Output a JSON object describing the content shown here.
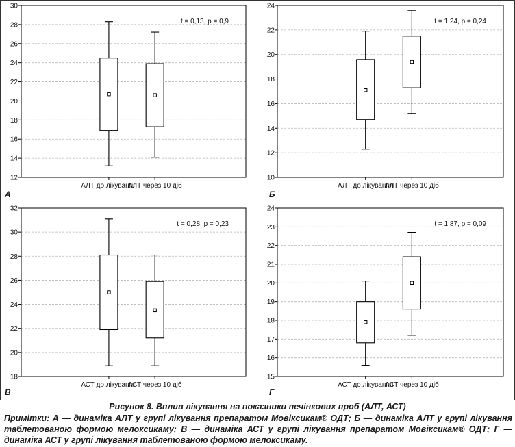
{
  "figure": {
    "caption": "Рисунок 8. Вплив лікування на показники печінкових проб (АЛТ, АСТ)",
    "note": "Примітки: А — динаміка АЛТ у групі лікування препаратом Мовіксикам® ОДТ; Б — динаміка АЛТ у групі лікування таблетованою формою мелоксикаму; В — динаміка АСТ у групі лікування препаратом Мовіксикам® ОДТ; Г — динаміка АСТ у групі лікування таблетованою формою мелоксикаму."
  },
  "chart_data": [
    {
      "type": "box",
      "panel_label": "А",
      "annotation": "t = 0,13,  p = 0,9",
      "categories": [
        "АЛТ до лікування",
        "АЛТ через 10 діб"
      ],
      "ylim": [
        12,
        30
      ],
      "yticks": [
        12,
        14,
        16,
        18,
        20,
        22,
        24,
        26,
        28,
        30
      ],
      "grid": true,
      "boxes": [
        {
          "min": 13.2,
          "q1": 16.9,
          "median": 20.7,
          "q3": 24.5,
          "max": 28.3
        },
        {
          "min": 14.1,
          "q1": 17.3,
          "median": 20.6,
          "q3": 23.9,
          "max": 27.2
        }
      ]
    },
    {
      "type": "box",
      "panel_label": "Б",
      "annotation": "t = 1,24,  p = 0,24",
      "categories": [
        "АЛТ до лікування",
        "АЛТ через 10 діб"
      ],
      "ylim": [
        10,
        24
      ],
      "yticks": [
        10,
        12,
        14,
        16,
        18,
        20,
        22,
        24
      ],
      "grid": true,
      "boxes": [
        {
          "min": 12.3,
          "q1": 14.7,
          "median": 17.1,
          "q3": 19.6,
          "max": 21.9
        },
        {
          "min": 15.2,
          "q1": 17.3,
          "median": 19.4,
          "q3": 21.5,
          "max": 23.6
        }
      ]
    },
    {
      "type": "box",
      "panel_label": "В",
      "annotation": "t = 0,28,  p = 0,23",
      "categories": [
        "АСТ до лікування",
        "АСТ через 10 діб"
      ],
      "ylim": [
        18,
        32
      ],
      "yticks": [
        18,
        20,
        22,
        24,
        26,
        28,
        30,
        32
      ],
      "grid": true,
      "boxes": [
        {
          "min": 18.9,
          "q1": 21.9,
          "median": 25.0,
          "q3": 28.1,
          "max": 31.1
        },
        {
          "min": 18.9,
          "q1": 21.2,
          "median": 23.5,
          "q3": 25.9,
          "max": 28.1
        }
      ]
    },
    {
      "type": "box",
      "panel_label": "Г",
      "annotation": "t = 1,87,  p = 0,09",
      "categories": [
        "АСТ до лікування",
        "АСТ через 10 діб"
      ],
      "ylim": [
        15,
        24
      ],
      "yticks": [
        15,
        16,
        17,
        18,
        19,
        20,
        21,
        22,
        23,
        24
      ],
      "grid": true,
      "boxes": [
        {
          "min": 15.6,
          "q1": 16.8,
          "median": 17.9,
          "q3": 19.0,
          "max": 20.1
        },
        {
          "min": 17.2,
          "q1": 18.6,
          "median": 20.0,
          "q3": 21.4,
          "max": 22.7
        }
      ]
    }
  ]
}
